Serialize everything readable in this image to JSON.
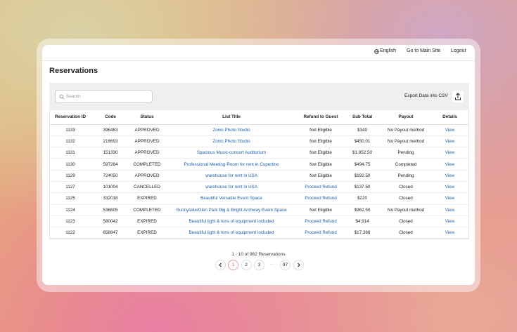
{
  "nav": {
    "language": "English",
    "main_site": "Go to Main Site",
    "logout": "Logout"
  },
  "title": "Reservations",
  "search_placeholder": "Search",
  "export_label": "Export Data into CSV",
  "table": {
    "columns": [
      "Reservation ID",
      "Code",
      "Status",
      "List Title",
      "Refund to Guest",
      "Sub Total",
      "Payout",
      "Details"
    ],
    "rows": [
      [
        "1133",
        "396483",
        "APPROVED",
        "Zonic Photo Studio",
        "Not Eligible",
        "$340",
        "No Payout method",
        "View"
      ],
      [
        "1132",
        "216693",
        "APPROVED",
        "Zonic Photo Studio",
        "Not Eligible",
        "$450.01",
        "No Payout method",
        "View"
      ],
      [
        "1131",
        "151330",
        "APPROVED",
        "Spacious Music-concert Auditorium",
        "Not Eligible",
        "$1,852.50",
        "Pending",
        "View"
      ],
      [
        "1130",
        "597284",
        "COMPLETED",
        "Professional Meeting-Room for rent in Cupertino",
        "Not Eligible",
        "$494.75",
        "Completed",
        "View"
      ],
      [
        "1129",
        "724050",
        "APPROVED",
        "warehouse for rent in USA",
        "Not Eligible",
        "$192.50",
        "Pending",
        "View"
      ],
      [
        "1127",
        "101004",
        "CANCELLED",
        "warehouse for rent in USA",
        "Proceed Refund",
        "$137.50",
        "Closed",
        "View"
      ],
      [
        "1125",
        "332018",
        "EXPIRED",
        "Beautiful Versatile Event Space",
        "Proceed Refund",
        "$220",
        "Closed",
        "View"
      ],
      [
        "1124",
        "538605",
        "COMPLETED",
        "Sunnyside/Glen Park Big & Bright Archway Event Space",
        "Not Eligible",
        "$962.50",
        "No Payout method",
        "View"
      ],
      [
        "1123",
        "580042",
        "EXPIRED",
        "Beautiful light & tons of equipment included",
        "Proceed Refund",
        "$4,914",
        "Closed",
        "View"
      ],
      [
        "1122",
        "658847",
        "EXPIRED",
        "Beautiful light & tons of equipment included",
        "Proceed Refund",
        "$17,388",
        "Closed",
        "View"
      ]
    ],
    "text_color": "#222222",
    "link_color": "#1f5fa6",
    "link_columns": [
      3,
      7
    ],
    "refund_colors": [
      "#222222",
      "#222222",
      "#222222",
      "#222222",
      "#222222",
      "#1f5fa6",
      "#1f5fa6",
      "#222222",
      "#1f5fa6",
      "#1f5fa6"
    ]
  },
  "pagination": {
    "summary": "1 - 10 of 962 Reservations",
    "pages": [
      "1",
      "2",
      "3",
      "···",
      "97"
    ],
    "current": 0
  }
}
